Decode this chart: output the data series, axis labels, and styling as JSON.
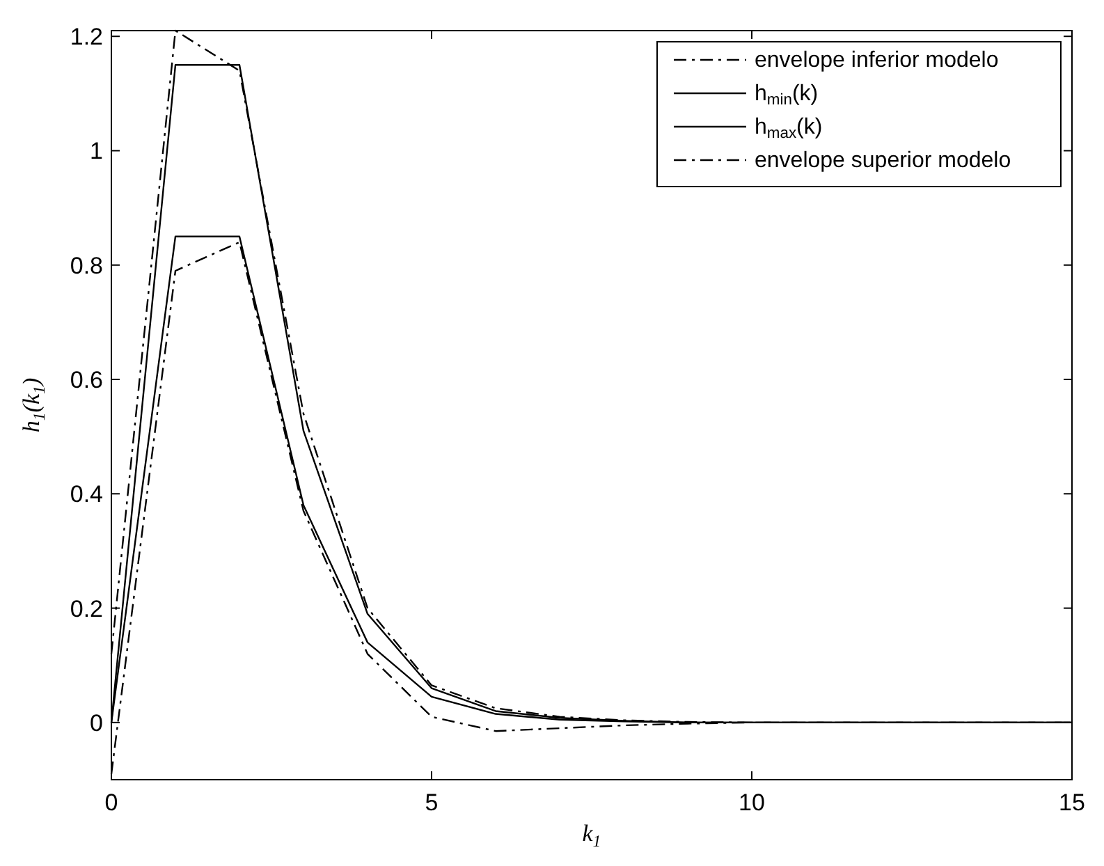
{
  "chart_data": {
    "type": "line",
    "xlabel": "k$_{1}$",
    "ylabel": "h$_{1}$(k$_{1}$)",
    "x": [
      0,
      1,
      2,
      3,
      4,
      5,
      6,
      7,
      8,
      9,
      10,
      11,
      12,
      13,
      14,
      15
    ],
    "xlim": [
      0,
      15
    ],
    "xticks": [
      0,
      5,
      10,
      15
    ],
    "ylim": [
      -0.1,
      1.21
    ],
    "yticks": [
      0,
      0.2,
      0.4,
      0.6,
      0.8,
      1,
      1.2
    ],
    "legend": "top right",
    "grid": false,
    "series": [
      {
        "name": "envelope inferior modelo",
        "color": "#000000",
        "line_style": "dashed",
        "values": [
          -0.09,
          0.79,
          0.84,
          0.37,
          0.12,
          0.01,
          -0.015,
          -0.01,
          -0.005,
          -0.002,
          0,
          0,
          0,
          0,
          0,
          0
        ]
      },
      {
        "name": "h$_{min}$(k)",
        "color": "#000000",
        "line_style": "solid",
        "values": [
          0,
          0.85,
          0.85,
          0.38,
          0.14,
          0.045,
          0.015,
          0.005,
          0.002,
          0,
          0,
          0,
          0,
          0,
          0,
          0
        ]
      },
      {
        "name": "h$_{max}$(k)",
        "color": "#000000",
        "line_style": "solid",
        "values": [
          0,
          1.15,
          1.15,
          0.51,
          0.19,
          0.06,
          0.02,
          0.008,
          0.003,
          0,
          0,
          0,
          0,
          0,
          0,
          0
        ]
      },
      {
        "name": "envelope superior modelo",
        "color": "#000000",
        "line_style": "dashed",
        "values": [
          0.12,
          1.21,
          1.14,
          0.54,
          0.2,
          0.065,
          0.025,
          0.01,
          0.004,
          0.001,
          0,
          0,
          0,
          0,
          0,
          0
        ]
      }
    ]
  }
}
